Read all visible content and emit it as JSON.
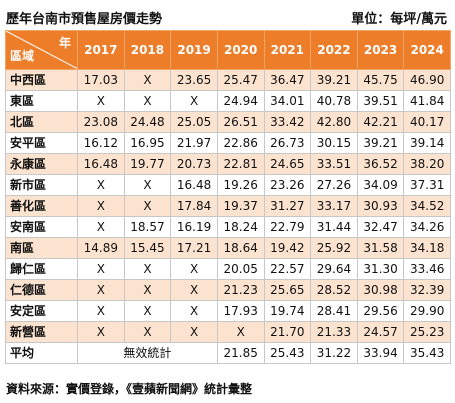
{
  "title": "歷年台南市預售屋房價走勢",
  "unit": "單位：每坪/萬元",
  "header": {
    "corner_top": "年",
    "corner_bottom": "區域",
    "years": [
      "2017",
      "2018",
      "2019",
      "2020",
      "2021",
      "2022",
      "2023",
      "2024"
    ]
  },
  "rows": [
    {
      "district": "中西區",
      "values": [
        "17.03",
        "X",
        "23.65",
        "25.47",
        "36.47",
        "39.21",
        "45.75",
        "46.90"
      ]
    },
    {
      "district": "東區",
      "values": [
        "X",
        "X",
        "X",
        "24.94",
        "34.01",
        "40.78",
        "39.51",
        "41.84"
      ]
    },
    {
      "district": "北區",
      "values": [
        "23.08",
        "24.48",
        "25.05",
        "26.51",
        "33.42",
        "42.80",
        "42.21",
        "40.17"
      ]
    },
    {
      "district": "安平區",
      "values": [
        "16.12",
        "16.95",
        "21.97",
        "22.86",
        "26.73",
        "30.15",
        "39.21",
        "39.14"
      ]
    },
    {
      "district": "永康區",
      "values": [
        "16.48",
        "19.77",
        "20.73",
        "22.81",
        "24.65",
        "33.51",
        "36.52",
        "38.20"
      ]
    },
    {
      "district": "新市區",
      "values": [
        "X",
        "X",
        "16.48",
        "19.26",
        "23.26",
        "27.26",
        "34.09",
        "37.31"
      ]
    },
    {
      "district": "善化區",
      "values": [
        "X",
        "X",
        "17.84",
        "19.37",
        "31.27",
        "33.17",
        "30.93",
        "34.52"
      ]
    },
    {
      "district": "安南區",
      "values": [
        "X",
        "18.57",
        "16.19",
        "18.24",
        "22.79",
        "31.44",
        "32.47",
        "34.26"
      ]
    },
    {
      "district": "南區",
      "values": [
        "14.89",
        "15.45",
        "17.21",
        "18.64",
        "19.42",
        "25.92",
        "31.58",
        "34.18"
      ]
    },
    {
      "district": "歸仁區",
      "values": [
        "X",
        "X",
        "X",
        "20.05",
        "22.57",
        "29.64",
        "31.30",
        "33.46"
      ]
    },
    {
      "district": "仁德區",
      "values": [
        "X",
        "X",
        "X",
        "21.23",
        "25.65",
        "28.52",
        "30.98",
        "32.39"
      ]
    },
    {
      "district": "安定區",
      "values": [
        "X",
        "X",
        "X",
        "17.93",
        "19.74",
        "28.41",
        "29.56",
        "29.90"
      ]
    },
    {
      "district": "新營區",
      "values": [
        "X",
        "X",
        "X",
        "X",
        "21.70",
        "21.33",
        "24.57",
        "25.23"
      ]
    }
  ],
  "average": {
    "label": "平均",
    "no_stats": "無效統計",
    "values": [
      "21.85",
      "25.43",
      "31.22",
      "33.94",
      "35.43"
    ]
  },
  "source": "資料來源：實價登錄，《壹蘋新聞網》統計彙整"
}
